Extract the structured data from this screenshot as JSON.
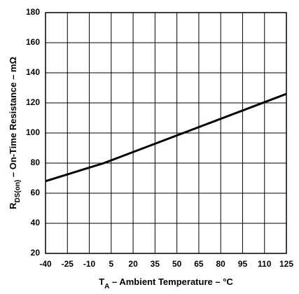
{
  "chart_data": {
    "type": "line",
    "x": [
      -40,
      -10,
      0,
      125
    ],
    "series": [
      {
        "color": "#000000",
        "values": [
          68,
          77,
          80,
          126
        ]
      }
    ],
    "xlim": [
      -40,
      125
    ],
    "xticks": [
      -40,
      -25,
      -10,
      5,
      20,
      35,
      50,
      65,
      80,
      95,
      110,
      125
    ],
    "ylim": [
      20,
      180
    ],
    "yticks": [
      20,
      40,
      60,
      80,
      100,
      120,
      140,
      160,
      180
    ],
    "grid": true,
    "xlabel": {
      "main": "T",
      "sub": "A",
      "rest": " – Ambient Temperature – °C"
    },
    "ylabel": {
      "main": "R",
      "sub": "DS(on)",
      "rest": " – On-Time Resistance – mΩ"
    }
  }
}
